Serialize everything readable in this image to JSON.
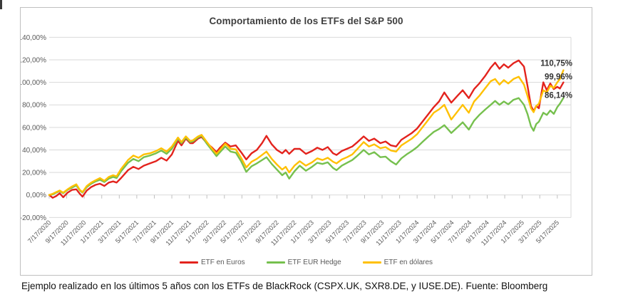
{
  "page": {
    "caption": "Ejemplo realizado en los últimos 5 años con los ETFs de BlackRock (CSPX.UK, SXR8.DE, y IUSE.DE). Fuente: Bloomberg"
  },
  "chart_data": {
    "type": "line",
    "title": "Comportamiento de los ETFs del S&P 500",
    "grid": "horizontal",
    "legend_position": "bottom",
    "ylim": [
      -20,
      140
    ],
    "y_ticks": [
      {
        "label": "140,00%",
        "value": 140
      },
      {
        "label": "120,00%",
        "value": 120
      },
      {
        "label": "100,00%",
        "value": 100
      },
      {
        "label": "80,00%",
        "value": 80
      },
      {
        "label": "60,00%",
        "value": 60
      },
      {
        "label": "40,00%",
        "value": 40
      },
      {
        "label": "20,00%",
        "value": 20
      },
      {
        "label": "0,00%",
        "value": 0
      },
      {
        "label": "-20,00%",
        "value": -20
      }
    ],
    "x_tick_labels": [
      "7/17/2020",
      "9/17/2020",
      "11/17/2020",
      "1/17/2021",
      "3/17/2021",
      "5/17/2021",
      "7/17/2021",
      "9/17/2021",
      "11/17/2021",
      "1/17/2022",
      "3/17/2022",
      "5/17/2022",
      "7/17/2022",
      "9/17/2022",
      "11/17/2022",
      "1/17/2023",
      "3/17/2023",
      "5/17/2023",
      "7/17/2023",
      "9/17/2023",
      "11/17/2023",
      "1/17/2024",
      "3/17/2024",
      "5/17/2024",
      "7/17/2024",
      "9/17/2024",
      "11/17/2024",
      "1/17/2025",
      "3/17/2025",
      "5/17/2025"
    ],
    "x_unit": "months since 7/17/2020",
    "x": [
      0,
      0.4,
      0.8,
      1.2,
      1.6,
      2.1,
      2.6,
      3.1,
      3.5,
      3.8,
      4.3,
      4.8,
      5.3,
      5.8,
      6.3,
      6.8,
      7.3,
      7.7,
      8.2,
      9.0,
      9.6,
      10.2,
      10.8,
      11.5,
      12.2,
      12.8,
      13.4,
      14.0,
      14.7,
      15.1,
      15.6,
      16.1,
      16.4,
      17.0,
      17.4,
      18.0,
      18.6,
      19.1,
      19.5,
      20.1,
      20.7,
      21.3,
      21.9,
      22.5,
      23.1,
      23.7,
      24.3,
      24.8,
      25.4,
      26.0,
      26.6,
      27.0,
      27.4,
      28.0,
      28.6,
      29.3,
      30.0,
      30.6,
      31.2,
      31.8,
      32.4,
      32.8,
      33.4,
      34.0,
      34.6,
      35.2,
      35.9,
      36.5,
      37.1,
      37.8,
      38.4,
      39.0,
      39.6,
      40.2,
      40.8,
      41.4,
      42.0,
      42.6,
      43.3,
      43.9,
      44.5,
      45.1,
      45.9,
      46.6,
      47.2,
      47.9,
      48.5,
      49.1,
      49.8,
      50.4,
      50.9,
      51.4,
      51.9,
      52.4,
      53.0,
      53.6,
      54.2,
      54.6,
      55.0,
      55.3,
      55.6,
      55.9,
      56.4,
      56.8,
      57.2,
      57.6,
      58.0,
      58.3,
      58.7
    ],
    "series": [
      {
        "name": "ETF en Euros",
        "color": "#e3231d",
        "values": [
          0,
          -2.5,
          -1,
          1.5,
          -2,
          2,
          4.5,
          5,
          1,
          -1.5,
          4,
          7,
          9,
          10,
          8,
          11,
          12,
          11,
          15,
          22,
          25,
          23,
          26,
          28,
          30,
          33,
          30.5,
          36,
          48,
          44,
          50,
          46,
          46,
          50,
          51.5,
          46,
          42,
          38,
          42,
          46.5,
          43,
          44,
          38,
          31.5,
          37,
          40,
          46,
          52.5,
          45,
          40,
          37,
          40,
          36.5,
          41,
          41,
          36.5,
          39,
          42,
          40,
          42.5,
          37,
          35.5,
          39,
          41,
          43,
          47,
          52,
          48,
          50,
          46,
          47.5,
          44,
          43,
          49,
          52,
          55,
          59,
          65,
          72,
          78,
          83,
          91,
          82,
          88,
          93,
          86,
          94,
          99,
          106,
          113,
          117.5,
          112,
          116,
          113,
          117,
          119.5,
          114,
          97,
          79,
          74.5,
          79,
          77,
          100,
          93,
          99,
          94,
          96,
          94.5,
          99.96
        ]
      },
      {
        "name": "ETF EUR Hedge",
        "color": "#76c04e",
        "values": [
          0,
          0.5,
          2,
          3.5,
          1.5,
          4.5,
          6.5,
          8.5,
          4,
          2,
          7,
          10,
          12,
          13.5,
          11.5,
          14.5,
          16,
          15,
          21,
          28.5,
          32,
          30,
          33.5,
          35,
          37,
          39.5,
          36.5,
          41,
          50,
          46,
          51,
          47,
          47.5,
          51,
          52.5,
          45.5,
          39.5,
          34.5,
          38,
          43,
          38.5,
          37.5,
          30,
          20.5,
          25.5,
          28,
          31,
          33.5,
          27.5,
          22.5,
          17.5,
          20,
          14.5,
          21,
          26,
          21.5,
          25,
          28.5,
          27.5,
          29,
          24,
          22,
          26,
          28.5,
          31,
          35,
          40,
          36,
          38,
          33.5,
          34,
          30,
          27,
          32.5,
          36,
          39,
          42.5,
          47,
          52,
          56,
          58.5,
          62,
          55,
          60,
          64.5,
          58,
          66,
          71,
          76,
          80,
          83.5,
          80,
          83,
          80.5,
          84.5,
          86,
          80,
          72,
          61,
          57,
          63,
          65,
          73,
          71,
          75,
          72,
          78,
          81,
          86.14
        ]
      },
      {
        "name": "ETF en dólares",
        "color": "#ffc000",
        "values": [
          0,
          1,
          2.5,
          4,
          2,
          5,
          7.5,
          9.5,
          4.5,
          2.5,
          8,
          11,
          13,
          15,
          12.5,
          16,
          17.5,
          16.5,
          23,
          31,
          35,
          33,
          36,
          37,
          39,
          41.5,
          38.5,
          43,
          51,
          47,
          52,
          48,
          48.5,
          52,
          53.3,
          47,
          41,
          36.5,
          40,
          45.5,
          41,
          40.5,
          33,
          24.5,
          29.5,
          32,
          35.5,
          38.5,
          32,
          27,
          22.5,
          25,
          20,
          26,
          30,
          26,
          29,
          32.5,
          31,
          33,
          29.5,
          28,
          31.5,
          33.5,
          36,
          41,
          47,
          43,
          45,
          41.5,
          42.5,
          39.5,
          38.5,
          44,
          47,
          50,
          54,
          60,
          67,
          73,
          76,
          80,
          67,
          74,
          80,
          73,
          83,
          88,
          95,
          101,
          103,
          98,
          102,
          99,
          103,
          105,
          98,
          88,
          77,
          73.5,
          79,
          81,
          93,
          91,
          97,
          95,
          100,
          103,
          110.75
        ]
      }
    ],
    "annotations": [
      {
        "label": "110,75%",
        "series": "ETF en dólares",
        "value": 110.75
      },
      {
        "label": "99,96%",
        "series": "ETF en Euros",
        "value": 99.96
      },
      {
        "label": "86,14%",
        "series": "ETF EUR Hedge",
        "value": 86.14
      }
    ]
  }
}
